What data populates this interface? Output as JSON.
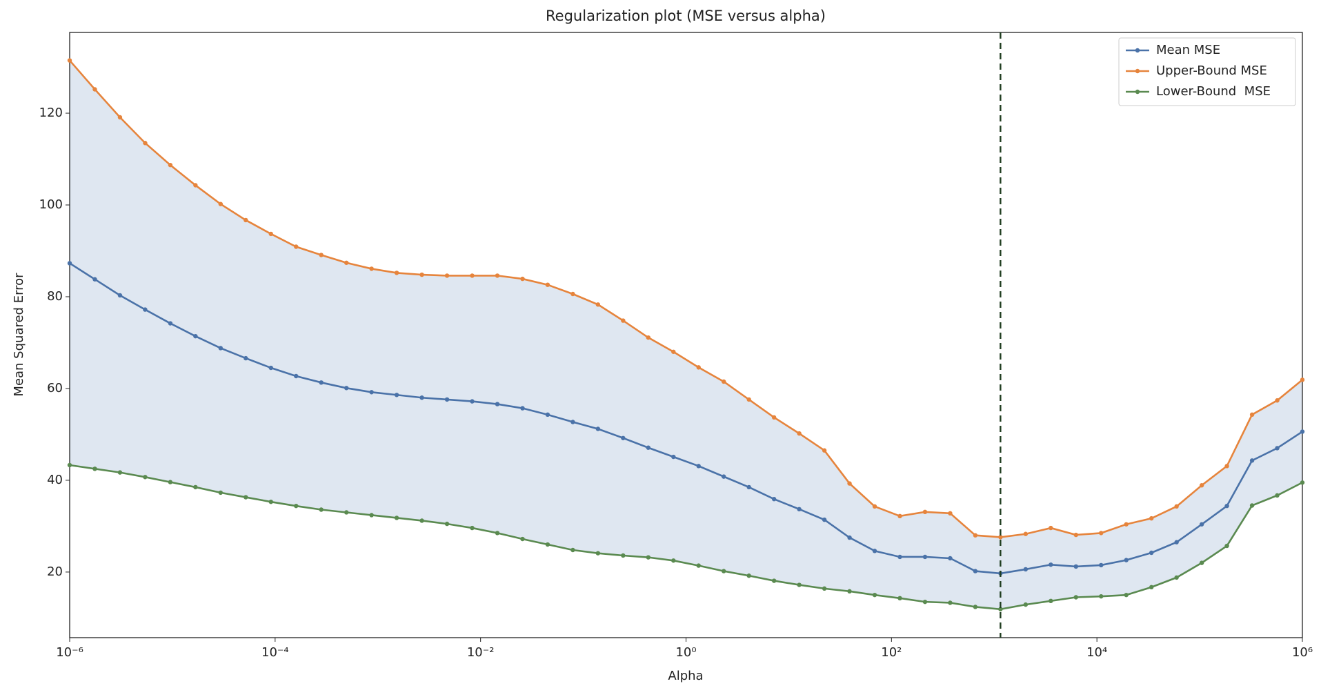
{
  "chart_data": {
    "type": "line",
    "title": "Regularization plot (MSE versus alpha)",
    "x_label": "Alpha",
    "y_label": "Mean Squared Error",
    "x": [
      1e-06,
      1.758e-06,
      3.089e-06,
      5.429e-06,
      9.541e-06,
      1.677e-05,
      2.947e-05,
      5.179e-05,
      9.103e-05,
      0.00016,
      0.0002812,
      0.0004942,
      0.0008685,
      0.001526,
      0.002683,
      0.004715,
      0.008286,
      0.01456,
      0.0256,
      0.04498,
      0.07906,
      0.1389,
      0.2442,
      0.4292,
      0.7543,
      1.326,
      2.33,
      4.095,
      7.197,
      12.65,
      22.23,
      39.07,
      68.66,
      120.7,
      212.1,
      372.8,
      655.1,
      1151,
      2024,
      3556,
      6251,
      10985,
      19307,
      33932,
      59636,
      104811,
      184207,
      323746,
      568987,
      1000000
    ],
    "series": [
      {
        "name": "Mean MSE",
        "color": "#4a72a8",
        "values": [
          87.3,
          83.8,
          80.3,
          77.2,
          74.2,
          71.4,
          68.8,
          66.6,
          64.5,
          62.7,
          61.3,
          60.1,
          59.2,
          58.6,
          58.0,
          57.6,
          57.2,
          56.6,
          55.7,
          54.3,
          52.7,
          51.2,
          49.2,
          47.1,
          45.1,
          43.1,
          40.8,
          38.5,
          35.9,
          33.7,
          31.4,
          27.5,
          24.6,
          23.3,
          23.3,
          23.0,
          20.2,
          19.7,
          20.6,
          21.6,
          21.2,
          21.5,
          22.6,
          24.2,
          26.5,
          30.4,
          34.4,
          44.3,
          47.0,
          50.6
        ]
      },
      {
        "name": "Upper-Bound MSE",
        "color": "#e6843c",
        "values": [
          131.5,
          125.2,
          119.1,
          113.5,
          108.7,
          104.3,
          100.2,
          96.7,
          93.7,
          90.9,
          89.1,
          87.4,
          86.1,
          85.2,
          84.8,
          84.6,
          84.6,
          84.6,
          83.9,
          82.6,
          80.6,
          78.3,
          74.8,
          71.1,
          68.0,
          64.6,
          61.5,
          57.6,
          53.7,
          50.2,
          46.5,
          39.3,
          34.3,
          32.2,
          33.1,
          32.8,
          28.0,
          27.6,
          28.3,
          29.6,
          28.1,
          28.5,
          30.4,
          31.7,
          34.3,
          38.9,
          43.1,
          54.3,
          57.4,
          61.9
        ]
      },
      {
        "name": "Lower-Bound  MSE",
        "color": "#5a8a50",
        "values": [
          43.3,
          42.5,
          41.7,
          40.7,
          39.6,
          38.5,
          37.3,
          36.3,
          35.3,
          34.4,
          33.6,
          33.0,
          32.4,
          31.8,
          31.2,
          30.5,
          29.6,
          28.5,
          27.2,
          26.0,
          24.8,
          24.1,
          23.6,
          23.2,
          22.5,
          21.4,
          20.2,
          19.2,
          18.1,
          17.2,
          16.4,
          15.8,
          15.0,
          14.3,
          13.5,
          13.3,
          12.4,
          11.9,
          12.9,
          13.7,
          14.5,
          14.7,
          15.0,
          16.7,
          18.8,
          22.0,
          25.7,
          34.5,
          36.7,
          39.5
        ]
      }
    ],
    "band_color": "#dfe7f1",
    "vline_x": 1151,
    "vline_color": "#1f3d1f",
    "xscale": "log",
    "xlim": [
      1e-06,
      1000000
    ],
    "xticks": [
      {
        "value": 1e-06,
        "label": "10⁻⁶"
      },
      {
        "value": 0.0001,
        "label": "10⁻⁴"
      },
      {
        "value": 0.01,
        "label": "10⁻²"
      },
      {
        "value": 1,
        "label": "10⁰"
      },
      {
        "value": 100,
        "label": "10²"
      },
      {
        "value": 10000,
        "label": "10⁴"
      },
      {
        "value": 1000000,
        "label": "10⁶"
      }
    ],
    "ylim": [
      5.7,
      137.6
    ],
    "yticks": [
      20,
      40,
      60,
      80,
      100,
      120
    ],
    "legend": "upper right"
  }
}
